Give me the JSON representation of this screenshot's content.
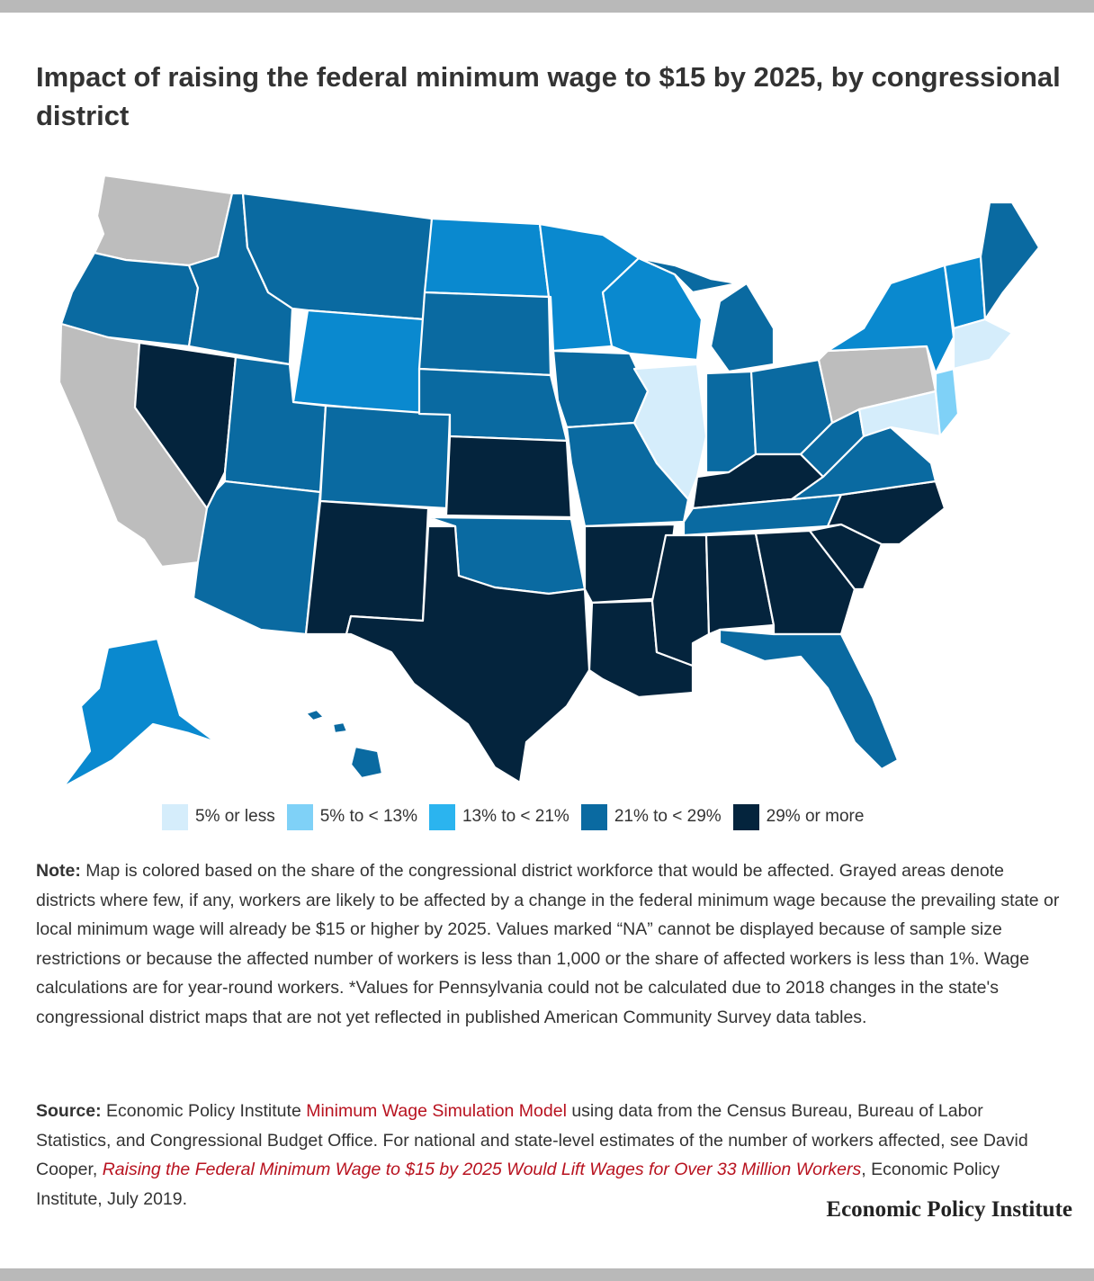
{
  "title": "Impact of raising the federal minimum wage to $15 by 2025, by congressional district",
  "colors": {
    "bin_1": "#d5edfb",
    "bin_2": "#7fd1f7",
    "bin_3": "#2bb4ef",
    "bin_4": "#0a89cf",
    "bin_5": "#00563f",
    "grey": "#bdbdbd",
    "border": "#ffffff",
    "link": "#b8121f",
    "top_bar": "#b9b9b9"
  },
  "legend": [
    {
      "label": "5% or less",
      "color": "#d5edfb"
    },
    {
      "label": "5% to < 13%",
      "color": "#7fd1f7"
    },
    {
      "label": "13% to < 21%",
      "color": "#2bb4ef"
    },
    {
      "label": "21% to < 29%",
      "color": "#0a6aa1"
    },
    {
      "label": "29% or more",
      "color": "#04243d"
    }
  ],
  "note": {
    "lead": "Note:",
    "text": " Map is colored based on the share of the congressional district workforce that would be affected. Grayed areas denote districts where few, if any, workers are likely to be affected by a change in the federal minimum wage because the prevailing state or local minimum wage will already be $15 or higher by 2025. Values marked “NA” cannot be displayed because of sample size restrictions or because the affected number of workers is less than 1,000 or the share of affected workers is less than 1%. Wage calculations are for year-round workers. *Values for Pennsylvania could not be calculated due to 2018 changes in the state's congressional district maps that are not yet reflected in published American Community Survey data tables."
  },
  "source": {
    "lead": "Source:",
    "text1": " Economic Policy Institute ",
    "link1": "Minimum Wage Simulation Model",
    "text2": " using data from the Census Bureau, Bureau of Labor Statistics, and Congressional Budget Office. For national and state-level estimates of the number of workers affected, see David Cooper, ",
    "link2": "Raising the Federal Minimum Wage to $15 by 2025 Would Lift Wages for Over 33 Million Workers",
    "text3": ", Economic Policy Institute, July 2019."
  },
  "branding": "Economic Policy Institute"
}
